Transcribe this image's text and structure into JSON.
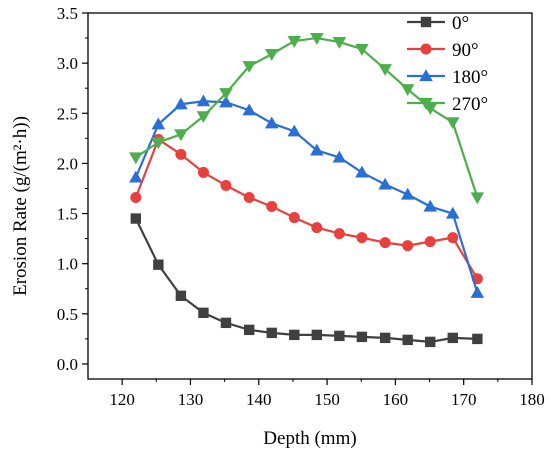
{
  "chart_data": {
    "type": "line",
    "title": "",
    "xlabel": "Depth (mm)",
    "ylabel": "Erosion Rate (g/(m²·h))",
    "xlim": [
      115,
      180
    ],
    "ylim": [
      -0.15,
      3.5
    ],
    "xticks": [
      120,
      130,
      140,
      150,
      160,
      170,
      180
    ],
    "yticks": [
      0.0,
      0.5,
      1.0,
      1.5,
      2.0,
      2.5,
      3.0,
      3.5
    ],
    "grid": false,
    "legend_position": "top-right",
    "series": [
      {
        "name": "0°",
        "color": "#404040",
        "marker": "square",
        "x": [
          122,
          125.3,
          128.6,
          131.9,
          135.2,
          138.6,
          141.9,
          145.2,
          148.5,
          151.8,
          155.1,
          158.5,
          161.8,
          165.1,
          168.4,
          172
        ],
        "y": [
          1.45,
          0.99,
          0.68,
          0.51,
          0.41,
          0.34,
          0.31,
          0.29,
          0.29,
          0.28,
          0.27,
          0.26,
          0.24,
          0.22,
          0.26,
          0.25
        ]
      },
      {
        "name": "90°",
        "color": "#e8413d",
        "marker": "circle",
        "x": [
          122,
          125.3,
          128.6,
          131.9,
          135.2,
          138.6,
          141.9,
          145.2,
          148.5,
          151.8,
          155.1,
          158.5,
          161.8,
          165.1,
          168.4,
          172
        ],
        "y": [
          1.66,
          2.24,
          2.09,
          1.91,
          1.78,
          1.66,
          1.57,
          1.46,
          1.36,
          1.3,
          1.26,
          1.21,
          1.18,
          1.22,
          1.26,
          0.85
        ]
      },
      {
        "name": "180°",
        "color": "#2a6fd6",
        "marker": "triangle-up",
        "x": [
          122,
          125.3,
          128.6,
          131.9,
          135.2,
          138.6,
          141.9,
          145.2,
          148.5,
          151.8,
          155.1,
          158.5,
          161.8,
          165.1,
          168.4,
          172
        ],
        "y": [
          1.86,
          2.39,
          2.59,
          2.62,
          2.61,
          2.53,
          2.4,
          2.32,
          2.13,
          2.06,
          1.91,
          1.79,
          1.69,
          1.57,
          1.5,
          0.71
        ]
      },
      {
        "name": "270°",
        "color": "#4cae4c",
        "marker": "triangle-down",
        "x": [
          122,
          125.3,
          128.6,
          131.9,
          135.2,
          138.6,
          141.9,
          145.2,
          148.5,
          151.8,
          155.1,
          158.5,
          161.8,
          165.1,
          168.4,
          172
        ],
        "y": [
          2.06,
          2.21,
          2.29,
          2.47,
          2.7,
          2.97,
          3.09,
          3.22,
          3.25,
          3.21,
          3.14,
          2.94,
          2.74,
          2.55,
          2.41,
          1.66
        ]
      }
    ]
  }
}
